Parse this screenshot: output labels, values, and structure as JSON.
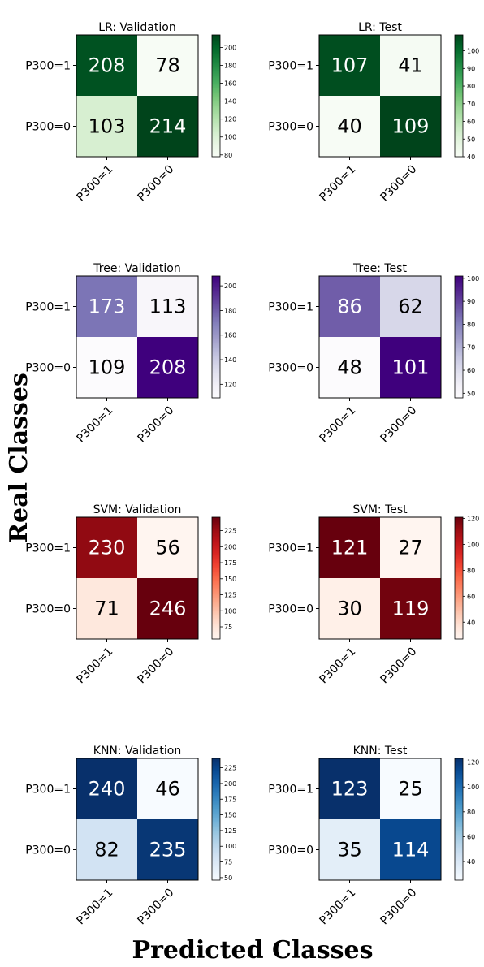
{
  "figure": {
    "ylabel": "Real Classes",
    "xlabel": "Predicted Classes"
  },
  "chart_data": [
    {
      "type": "heatmap",
      "title": "LR: Validation",
      "colormap": "Greens",
      "rows": [
        "P300=1",
        "P300=0"
      ],
      "columns": [
        "P300=1",
        "P300=0"
      ],
      "values": [
        [
          208,
          78
        ],
        [
          103,
          214
        ]
      ],
      "colorbar_range": [
        78,
        214
      ],
      "colorbar_ticks": [
        80,
        100,
        120,
        140,
        160,
        180,
        200
      ]
    },
    {
      "type": "heatmap",
      "title": "LR: Test",
      "colormap": "Greens",
      "rows": [
        "P300=1",
        "P300=0"
      ],
      "columns": [
        "P300=1",
        "P300=0"
      ],
      "values": [
        [
          107,
          41
        ],
        [
          40,
          109
        ]
      ],
      "colorbar_range": [
        40,
        109
      ],
      "colorbar_ticks": [
        40,
        50,
        60,
        70,
        80,
        90,
        100
      ]
    },
    {
      "type": "heatmap",
      "title": "Tree: Validation",
      "colormap": "Purples",
      "rows": [
        "P300=1",
        "P300=0"
      ],
      "columns": [
        "P300=1",
        "P300=0"
      ],
      "values": [
        [
          173,
          113
        ],
        [
          109,
          208
        ]
      ],
      "colorbar_range": [
        109,
        208
      ],
      "colorbar_ticks": [
        120,
        140,
        160,
        180,
        200
      ]
    },
    {
      "type": "heatmap",
      "title": "Tree: Test",
      "colormap": "Purples",
      "rows": [
        "P300=1",
        "P300=0"
      ],
      "columns": [
        "P300=1",
        "P300=0"
      ],
      "values": [
        [
          86,
          62
        ],
        [
          48,
          101
        ]
      ],
      "colorbar_range": [
        48,
        101
      ],
      "colorbar_ticks": [
        50,
        60,
        70,
        80,
        90,
        100
      ]
    },
    {
      "type": "heatmap",
      "title": "SVM: Validation",
      "colormap": "Reds",
      "rows": [
        "P300=1",
        "P300=0"
      ],
      "columns": [
        "P300=1",
        "P300=0"
      ],
      "values": [
        [
          230,
          56
        ],
        [
          71,
          246
        ]
      ],
      "colorbar_range": [
        56,
        246
      ],
      "colorbar_ticks": [
        75,
        100,
        125,
        150,
        175,
        200,
        225
      ]
    },
    {
      "type": "heatmap",
      "title": "SVM: Test",
      "colormap": "Reds",
      "rows": [
        "P300=1",
        "P300=0"
      ],
      "columns": [
        "P300=1",
        "P300=0"
      ],
      "values": [
        [
          121,
          27
        ],
        [
          30,
          119
        ]
      ],
      "colorbar_range": [
        27,
        121
      ],
      "colorbar_ticks": [
        40,
        60,
        80,
        100,
        120
      ]
    },
    {
      "type": "heatmap",
      "title": "KNN: Validation",
      "colormap": "Blues",
      "rows": [
        "P300=1",
        "P300=0"
      ],
      "columns": [
        "P300=1",
        "P300=0"
      ],
      "values": [
        [
          240,
          46
        ],
        [
          82,
          235
        ]
      ],
      "colorbar_range": [
        46,
        240
      ],
      "colorbar_ticks": [
        50,
        75,
        100,
        125,
        150,
        175,
        200,
        225
      ]
    },
    {
      "type": "heatmap",
      "title": "KNN: Test",
      "colormap": "Blues",
      "rows": [
        "P300=1",
        "P300=0"
      ],
      "columns": [
        "P300=1",
        "P300=0"
      ],
      "values": [
        [
          123,
          25
        ],
        [
          35,
          114
        ]
      ],
      "colorbar_range": [
        25,
        123
      ],
      "colorbar_ticks": [
        40,
        60,
        80,
        100,
        120
      ]
    }
  ]
}
